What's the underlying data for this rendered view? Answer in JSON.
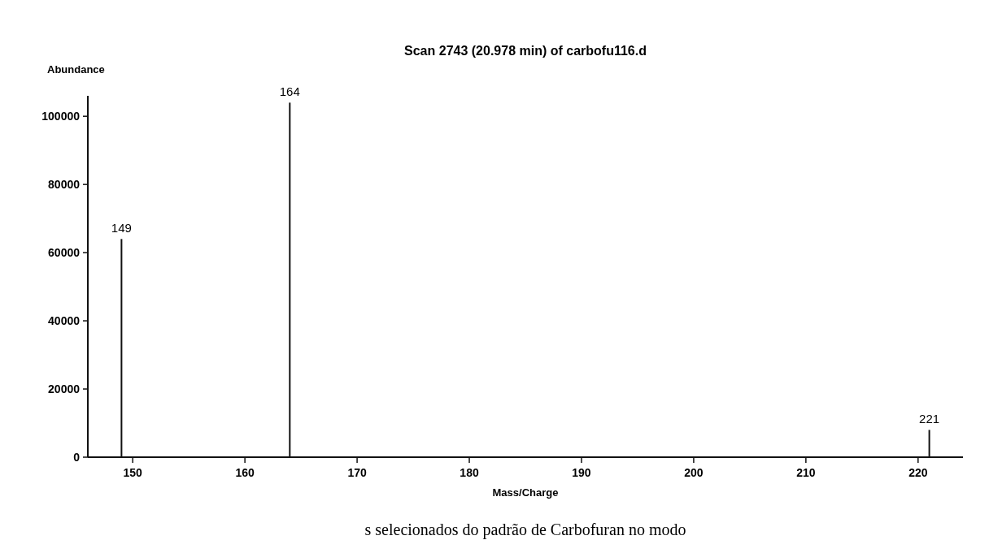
{
  "chart_data": {
    "type": "bar",
    "title": "Scan 2743 (20.978 min) of carbofu116.d",
    "xlabel": "Mass/Charge",
    "ylabel": "Abundance",
    "x": [
      149,
      164,
      221
    ],
    "values": [
      64000,
      104000,
      8000
    ],
    "color": "#111111",
    "xlim": [
      146,
      224
    ],
    "xticks": [
      150,
      160,
      170,
      180,
      190,
      200,
      210,
      220
    ],
    "ylim": [
      0,
      106000
    ],
    "yticks": [
      0,
      20000,
      40000,
      60000,
      80000,
      100000
    ],
    "grid": false,
    "annotations": [
      {
        "text": "149",
        "x": 149,
        "y": 64000
      },
      {
        "text": "164",
        "x": 164,
        "y": 104000
      },
      {
        "text": "221",
        "x": 221,
        "y": 8000
      },
      "s selecionados do padrão de Carbofuran no modo"
    ]
  }
}
